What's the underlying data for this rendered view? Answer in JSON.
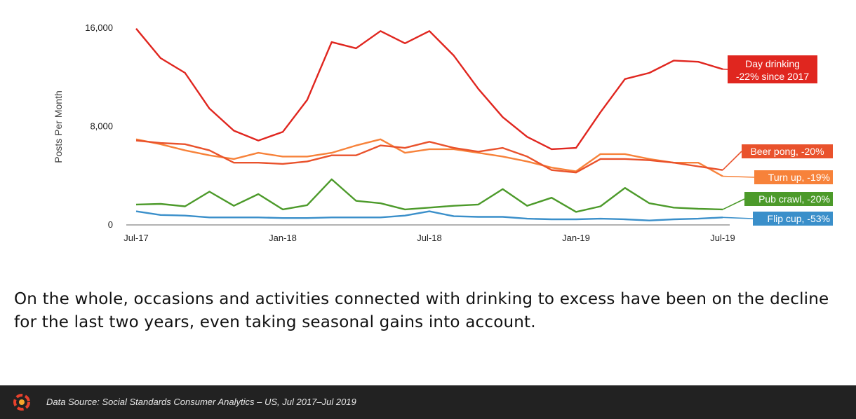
{
  "chart_data": {
    "type": "line",
    "ylabel": "Posts Per Month",
    "ylim": [
      0,
      16000
    ],
    "yticks": [
      "0",
      "8,000",
      "16,000"
    ],
    "x": [
      "Jul-17",
      "Aug-17",
      "Sep-17",
      "Oct-17",
      "Nov-17",
      "Dec-17",
      "Jan-18",
      "Feb-18",
      "Mar-18",
      "Apr-18",
      "May-18",
      "Jun-18",
      "Jul-18",
      "Aug-18",
      "Sep-18",
      "Oct-18",
      "Nov-18",
      "Dec-18",
      "Jan-19",
      "Feb-19",
      "Mar-19",
      "Apr-19",
      "May-19",
      "Jun-19",
      "Jul-19"
    ],
    "xtick_labels": [
      "Jul-17",
      "Jan-18",
      "Jul-18",
      "Jan-19",
      "Jul-19"
    ],
    "series": [
      {
        "key": "day_drinking",
        "color": "#e0261f",
        "label": "Day drinking\n-22% since 2017",
        "values": [
          15900,
          13500,
          12300,
          9400,
          7600,
          6800,
          7500,
          10100,
          14800,
          14300,
          15700,
          14700,
          15700,
          13700,
          11000,
          8700,
          7100,
          6100,
          6200,
          9100,
          11800,
          12300,
          13300,
          13200,
          12600
        ]
      },
      {
        "key": "beer_pong",
        "color": "#e9522c",
        "label": "Beer pong, -20%",
        "values": [
          6800,
          6600,
          6500,
          6000,
          5000,
          5000,
          4900,
          5100,
          5600,
          5600,
          6400,
          6200,
          6700,
          6200,
          5900,
          6200,
          5500,
          4400,
          4200,
          5300,
          5300,
          5200,
          5000,
          4700,
          4400
        ]
      },
      {
        "key": "turn_up",
        "color": "#f7823a",
        "label": "Turn up, -19%",
        "values": [
          6900,
          6500,
          6000,
          5600,
          5300,
          5800,
          5500,
          5500,
          5800,
          6400,
          6900,
          5800,
          6100,
          6100,
          5800,
          5500,
          5100,
          4600,
          4300,
          5700,
          5700,
          5300,
          5000,
          5000,
          3900
        ]
      },
      {
        "key": "pub_crawl",
        "color": "#4c9a2a",
        "label": "Pub crawl, -20%",
        "values": [
          1600,
          1650,
          1450,
          2650,
          1500,
          2450,
          1200,
          1550,
          3650,
          1900,
          1700,
          1200,
          1350,
          1500,
          1600,
          2850,
          1500,
          2150,
          1000,
          1450,
          2950,
          1700,
          1350,
          1250,
          1200
        ]
      },
      {
        "key": "flip_cup",
        "color": "#3a8fca",
        "label": "Flip cup, -53%",
        "values": [
          1050,
          750,
          700,
          550,
          550,
          550,
          500,
          500,
          550,
          550,
          550,
          700,
          1050,
          650,
          600,
          600,
          450,
          400,
          400,
          450,
          400,
          300,
          400,
          450,
          550
        ]
      }
    ]
  },
  "caption": {
    "text": "On the whole, occasions and activities connected with drinking to excess have been on the decline for the last two years, even taking seasonal gains into account."
  },
  "footer": {
    "source": "Data Source: Social Standards Consumer Analytics – US, Jul 2017–Jul 2019",
    "logo": "brand-logo-icon"
  }
}
